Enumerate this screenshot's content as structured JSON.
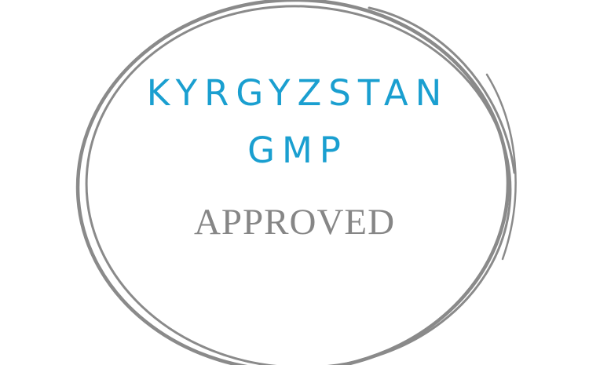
{
  "stamp": {
    "line1": "KYRGYZSTAN",
    "line2": "GMP",
    "line3": "APPROVED"
  },
  "colors": {
    "title": "#1a9fd0",
    "subtitle": "#868686",
    "ring": "#8a8a8a",
    "background": "#ffffff"
  }
}
